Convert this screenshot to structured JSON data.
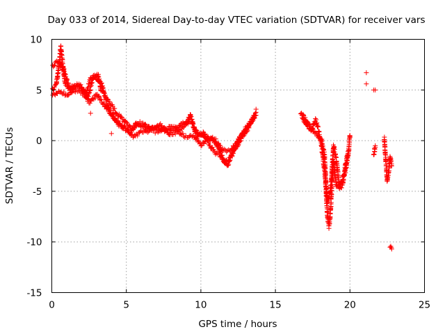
{
  "chart_data": {
    "type": "scatter",
    "title": "Day 033 of 2014, Sidereal Day-to-day VTEC variation (SDTVAR) for receiver vars",
    "xlabel": "GPS time / hours",
    "ylabel": "SDTVAR / TECUs",
    "xlim": [
      0,
      25
    ],
    "ylim": [
      -15,
      10
    ],
    "xticks": [
      0,
      5,
      10,
      15,
      20,
      25
    ],
    "yticks": [
      -15,
      -10,
      -5,
      0,
      5,
      10
    ],
    "grid": true,
    "marker": "+",
    "color": "#ff0000",
    "series": [
      {
        "name": "SDTVAR",
        "trend_segments": [
          [
            [
              0.0,
              5.0
            ],
            [
              0.3,
              5.5
            ],
            [
              0.5,
              7.5
            ],
            [
              0.6,
              9.3
            ],
            [
              0.7,
              8.0
            ],
            [
              0.9,
              5.5
            ],
            [
              1.3,
              5.0
            ],
            [
              1.8,
              5.6
            ],
            [
              2.3,
              4.6
            ],
            [
              2.6,
              6.2
            ],
            [
              3.1,
              6.5
            ],
            [
              3.3,
              5.0
            ],
            [
              3.7,
              4.2
            ],
            [
              4.2,
              3.0
            ],
            [
              4.8,
              2.0
            ],
            [
              5.3,
              1.2
            ],
            [
              5.8,
              1.6
            ],
            [
              6.3,
              1.2
            ],
            [
              7.0,
              1.2
            ],
            [
              7.5,
              1.0
            ],
            [
              8.0,
              1.4
            ],
            [
              8.5,
              1.0
            ],
            [
              9.0,
              1.6
            ],
            [
              9.3,
              2.5
            ],
            [
              9.6,
              1.0
            ],
            [
              10.0,
              0.6
            ],
            [
              10.4,
              0.3
            ],
            [
              10.8,
              0.2
            ],
            [
              11.2,
              -0.8
            ],
            [
              11.6,
              -2.2
            ],
            [
              11.9,
              -1.8
            ],
            [
              12.3,
              -0.8
            ],
            [
              12.7,
              0.2
            ],
            [
              13.2,
              1.3
            ],
            [
              13.7,
              2.8
            ]
          ],
          [
            [
              0.0,
              7.2
            ],
            [
              0.4,
              7.8
            ],
            [
              0.8,
              7.0
            ],
            [
              1.2,
              5.2
            ],
            [
              1.6,
              5.4
            ],
            [
              2.0,
              5.2
            ],
            [
              2.4,
              4.2
            ],
            [
              2.8,
              6.3
            ],
            [
              3.3,
              5.8
            ],
            [
              3.8,
              3.2
            ],
            [
              4.3,
              2.0
            ],
            [
              4.8,
              1.4
            ],
            [
              5.3,
              0.8
            ],
            [
              5.7,
              1.8
            ],
            [
              6.2,
              1.6
            ],
            [
              6.7,
              1.1
            ],
            [
              7.3,
              1.5
            ],
            [
              7.8,
              0.8
            ],
            [
              8.4,
              1.3
            ],
            [
              8.9,
              1.8
            ],
            [
              9.4,
              1.8
            ],
            [
              9.8,
              0.4
            ],
            [
              10.2,
              0.8
            ],
            [
              10.6,
              -0.5
            ],
            [
              11.0,
              -1.2
            ],
            [
              11.5,
              -1.8
            ],
            [
              11.8,
              -2.5
            ],
            [
              12.4,
              -0.2
            ],
            [
              12.9,
              0.8
            ],
            [
              13.4,
              2.0
            ],
            [
              13.7,
              2.5
            ]
          ],
          [
            [
              0.0,
              4.4
            ],
            [
              0.5,
              4.9
            ],
            [
              1.0,
              4.5
            ],
            [
              1.5,
              5.0
            ],
            [
              2.0,
              4.8
            ],
            [
              2.5,
              3.8
            ],
            [
              3.0,
              4.5
            ],
            [
              3.5,
              3.6
            ],
            [
              4.0,
              2.6
            ],
            [
              4.5,
              1.6
            ],
            [
              5.0,
              1.0
            ],
            [
              5.5,
              0.4
            ],
            [
              6.0,
              0.8
            ],
            [
              6.5,
              1.0
            ],
            [
              7.0,
              0.9
            ],
            [
              7.5,
              1.2
            ],
            [
              8.0,
              0.6
            ],
            [
              8.5,
              0.8
            ],
            [
              9.0,
              0.4
            ],
            [
              9.5,
              0.5
            ],
            [
              10.0,
              -0.4
            ],
            [
              10.5,
              0.2
            ],
            [
              11.0,
              0.0
            ],
            [
              11.5,
              -1.0
            ],
            [
              12.0,
              -1.0
            ],
            [
              12.5,
              0.0
            ],
            [
              13.0,
              1.2
            ],
            [
              13.5,
              2.0
            ]
          ],
          [
            [
              16.7,
              2.7
            ],
            [
              17.0,
              2.2
            ],
            [
              17.3,
              1.4
            ],
            [
              17.6,
              0.8
            ],
            [
              17.9,
              0.4
            ],
            [
              18.1,
              0.0
            ],
            [
              18.3,
              -1.5
            ],
            [
              18.4,
              -5.0
            ],
            [
              18.5,
              -7.5
            ],
            [
              18.6,
              -8.5
            ],
            [
              18.7,
              -7.0
            ],
            [
              18.8,
              -4.0
            ],
            [
              18.9,
              -2.0
            ],
            [
              19.0,
              -3.5
            ],
            [
              19.1,
              -4.5
            ],
            [
              19.3,
              -4.3
            ],
            [
              19.5,
              -3.8
            ],
            [
              19.7,
              -3.0
            ],
            [
              19.9,
              -1.2
            ],
            [
              20.0,
              0.5
            ]
          ],
          [
            [
              16.8,
              2.3
            ],
            [
              17.1,
              1.6
            ],
            [
              17.4,
              1.0
            ],
            [
              17.7,
              2.0
            ],
            [
              17.9,
              1.0
            ],
            [
              18.1,
              -0.5
            ],
            [
              18.3,
              -3.0
            ],
            [
              18.5,
              -6.0
            ],
            [
              18.7,
              -5.0
            ],
            [
              18.9,
              -0.5
            ],
            [
              19.1,
              -2.0
            ],
            [
              19.3,
              -4.8
            ],
            [
              19.5,
              -4.5
            ],
            [
              19.7,
              -2.5
            ],
            [
              19.9,
              -1.0
            ]
          ],
          [
            [
              21.6,
              -1.5
            ],
            [
              21.7,
              -0.5
            ]
          ],
          [
            [
              22.3,
              0.2
            ],
            [
              22.4,
              -1.8
            ],
            [
              22.5,
              -4.0
            ],
            [
              22.6,
              -3.0
            ],
            [
              22.7,
              -1.6
            ],
            [
              22.8,
              -2.5
            ]
          ],
          [
            [
              22.7,
              -10.5
            ],
            [
              22.8,
              -10.7
            ]
          ]
        ],
        "isolated_points": [
          [
            21.1,
            6.7
          ],
          [
            21.1,
            5.6
          ],
          [
            21.6,
            5.0
          ],
          [
            21.7,
            5.0
          ],
          [
            22.3,
            0.0
          ],
          [
            13.7,
            3.1
          ],
          [
            2.6,
            2.7
          ],
          [
            4.0,
            0.7
          ]
        ]
      }
    ]
  }
}
